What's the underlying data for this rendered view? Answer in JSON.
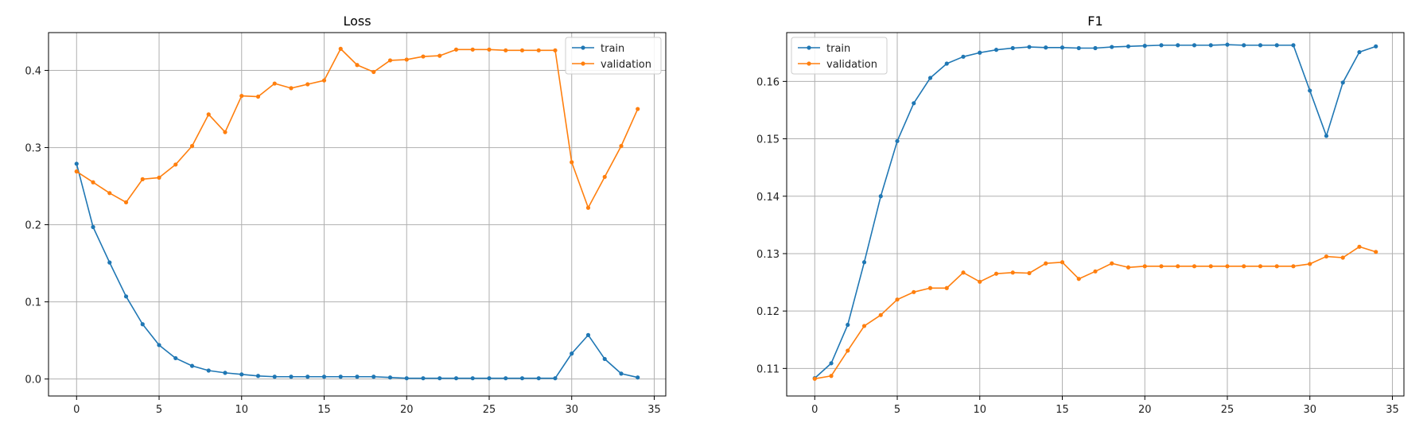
{
  "chart_data": [
    {
      "type": "line",
      "title": "Loss",
      "xlabel": "",
      "ylabel": "",
      "xlim": [
        -1.7,
        35.7
      ],
      "ylim": [
        -0.022,
        0.449
      ],
      "xticks": [
        0,
        5,
        10,
        15,
        20,
        25,
        30,
        35
      ],
      "yticks": [
        0.0,
        0.1,
        0.2,
        0.3,
        0.4
      ],
      "ytick_format": 1,
      "grid": true,
      "legend": "upper right",
      "x": [
        0,
        1,
        2,
        3,
        4,
        5,
        6,
        7,
        8,
        9,
        10,
        11,
        12,
        13,
        14,
        15,
        16,
        17,
        18,
        19,
        20,
        21,
        22,
        23,
        24,
        25,
        26,
        27,
        28,
        29,
        30,
        31,
        32,
        33,
        34
      ],
      "series": [
        {
          "name": "train",
          "color": "#1f77b4",
          "values": [
            0.279,
            0.197,
            0.151,
            0.107,
            0.071,
            0.044,
            0.027,
            0.017,
            0.011,
            0.008,
            0.006,
            0.004,
            0.003,
            0.003,
            0.003,
            0.003,
            0.003,
            0.003,
            0.003,
            0.002,
            0.001,
            0.001,
            0.001,
            0.001,
            0.001,
            0.001,
            0.001,
            0.001,
            0.001,
            0.001,
            0.033,
            0.057,
            0.026,
            0.007,
            0.002
          ]
        },
        {
          "name": "validation",
          "color": "#ff7f0e",
          "values": [
            0.269,
            0.255,
            0.241,
            0.229,
            0.259,
            0.261,
            0.278,
            0.302,
            0.343,
            0.32,
            0.367,
            0.366,
            0.383,
            0.377,
            0.382,
            0.387,
            0.428,
            0.407,
            0.398,
            0.413,
            0.414,
            0.418,
            0.419,
            0.427,
            0.427,
            0.427,
            0.426,
            0.426,
            0.426,
            0.426,
            0.281,
            0.222,
            0.262,
            0.302,
            0.35
          ]
        }
      ]
    },
    {
      "type": "line",
      "title": "F1",
      "xlabel": "",
      "ylabel": "",
      "xlim": [
        -1.7,
        35.7
      ],
      "ylim": [
        0.1052,
        0.1685
      ],
      "xticks": [
        0,
        5,
        10,
        15,
        20,
        25,
        30,
        35
      ],
      "yticks": [
        0.11,
        0.12,
        0.13,
        0.14,
        0.15,
        0.16
      ],
      "ytick_format": 2,
      "grid": true,
      "legend": "upper left",
      "x": [
        0,
        1,
        2,
        3,
        4,
        5,
        6,
        7,
        8,
        9,
        10,
        11,
        12,
        13,
        14,
        15,
        16,
        17,
        18,
        19,
        20,
        21,
        22,
        23,
        24,
        25,
        26,
        27,
        28,
        29,
        30,
        31,
        32,
        33,
        34
      ],
      "series": [
        {
          "name": "train",
          "color": "#1f77b4",
          "values": [
            0.1083,
            0.1109,
            0.1176,
            0.1285,
            0.14,
            0.1496,
            0.1562,
            0.1606,
            0.1631,
            0.1643,
            0.165,
            0.1655,
            0.1658,
            0.166,
            0.1659,
            0.1659,
            0.1658,
            0.1658,
            0.166,
            0.1661,
            0.1662,
            0.1663,
            0.1663,
            0.1663,
            0.1663,
            0.1664,
            0.1663,
            0.1663,
            0.1663,
            0.1663,
            0.1584,
            0.1505,
            0.1598,
            0.1651,
            0.1661
          ]
        },
        {
          "name": "validation",
          "color": "#ff7f0e",
          "values": [
            0.1082,
            0.1087,
            0.1131,
            0.1174,
            0.1193,
            0.122,
            0.1233,
            0.124,
            0.124,
            0.1267,
            0.1251,
            0.1265,
            0.1267,
            0.1266,
            0.1283,
            0.1285,
            0.1256,
            0.1269,
            0.1283,
            0.1276,
            0.1278,
            0.1278,
            0.1278,
            0.1278,
            0.1278,
            0.1278,
            0.1278,
            0.1278,
            0.1278,
            0.1278,
            0.1282,
            0.1295,
            0.1293,
            0.1312,
            0.1303
          ]
        }
      ]
    }
  ]
}
